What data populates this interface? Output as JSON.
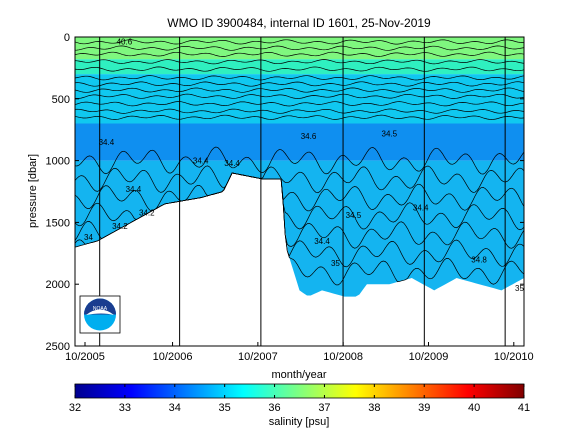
{
  "chart_data": {
    "type": "heatmap",
    "title": "WMO ID 3900484, internal ID 1601, 25-Nov-2019",
    "xlabel": "month/year",
    "ylabel": "pressure [dbar]",
    "x_ticks": [
      "10/2005",
      "10/2006",
      "10/2007",
      "10/2008",
      "10/2009",
      "10/2010"
    ],
    "y_ticks": [
      0,
      500,
      1000,
      1500,
      2000,
      2500
    ],
    "ylim": [
      0,
      2500
    ],
    "y_reversed": true,
    "colorbar": {
      "label": "salinity [psu]",
      "ticks": [
        32,
        33,
        34,
        35,
        36,
        37,
        38,
        39,
        40,
        41
      ],
      "range": [
        32,
        41
      ],
      "colormap": "jet"
    },
    "contour_labels": [
      "34",
      "34.2",
      "34.4",
      "34.5",
      "34.6",
      "34.8",
      "35",
      "40.6"
    ],
    "max_depth_profile": {
      "x_fraction": [
        0.0,
        0.05,
        0.1,
        0.15,
        0.2,
        0.28,
        0.33,
        0.35,
        0.42,
        0.46,
        0.47,
        0.5,
        0.52,
        0.55,
        0.6,
        0.63,
        0.65,
        0.7,
        0.75,
        0.8,
        0.85,
        0.9,
        0.95,
        1.0
      ],
      "pressure": [
        1700,
        1650,
        1550,
        1450,
        1350,
        1300,
        1250,
        1100,
        1150,
        1150,
        1700,
        2050,
        2100,
        2050,
        2100,
        2100,
        2000,
        2000,
        1950,
        2050,
        1950,
        2000,
        2050,
        1950
      ]
    },
    "vertical_lines_x_fraction": [
      0.055,
      0.233,
      0.414,
      0.597,
      0.778,
      0.958
    ]
  },
  "logo": {
    "text": "NOAA",
    "colors": {
      "top": "#1a3c8f",
      "bottom": "#00aeef",
      "bird": "#ffffff"
    }
  },
  "colors": {
    "axis": "#000000",
    "background": "#ffffff"
  }
}
